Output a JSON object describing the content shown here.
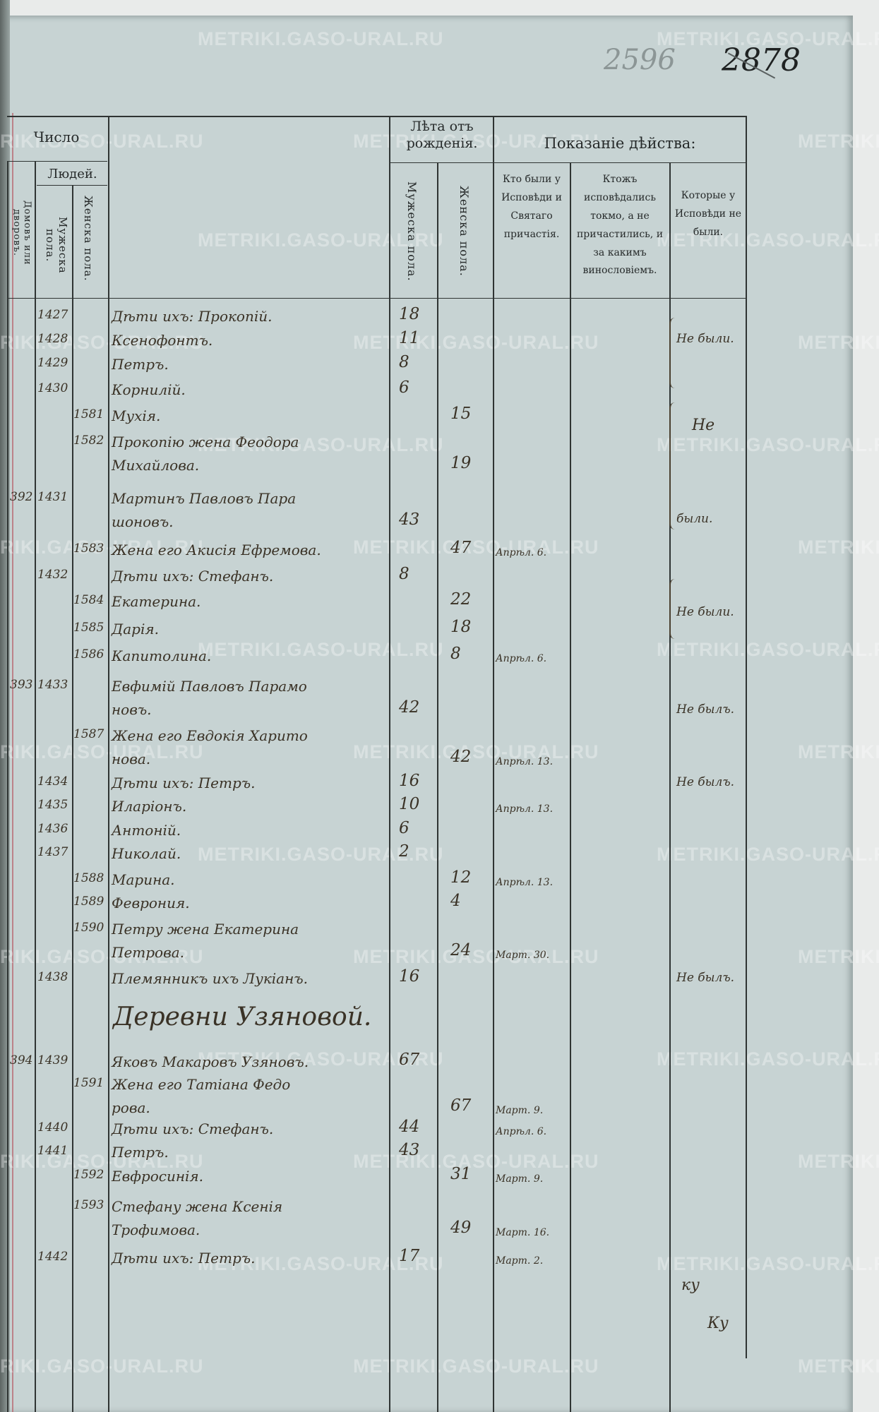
{
  "page_numbers": {
    "pencil": "2596",
    "ink_struck": "2878"
  },
  "watermark": "METRIKI.GASO-URAL.RU",
  "header": {
    "chislo": "Число",
    "lyudey": "Людей.",
    "domov": "Домовъ или дворовъ.",
    "muzh_num": "Мужеска пола.",
    "zhen_num": "Женска пола.",
    "leta": "Лѣта отъ рожденія.",
    "leta_muzh": "Мужеска пола.",
    "leta_zhen": "Женска пола.",
    "pokazanie": "Показаніе дѣйства:",
    "col_confessed": "Кто были у Исповѣди и Святаго причастія.",
    "col_not_communed": "Ктожъ исповѣдались токмо, а не причастились, и за какимъ винословіемъ.",
    "col_absent": "Которые у Исповѣди не были."
  },
  "section_heading": "Деревни Узяновой.",
  "rows": [
    {
      "dvor": "",
      "m": "1427",
      "f": "",
      "name": [
        "Дѣти ихъ: Прокопiй."
      ],
      "mage": "18",
      "fage": "",
      "conf": ""
    },
    {
      "dvor": "",
      "m": "1428",
      "f": "",
      "name": [
        "Ксенофонтъ."
      ],
      "mage": "11",
      "fage": "",
      "conf": ""
    },
    {
      "dvor": "",
      "m": "1429",
      "f": "",
      "name": [
        "Петръ."
      ],
      "mage": "8",
      "fage": "",
      "conf": ""
    },
    {
      "dvor": "",
      "m": "1430",
      "f": "",
      "name": [
        "Корнилiй."
      ],
      "mage": "6",
      "fage": "",
      "conf": ""
    },
    {
      "dvor": "",
      "m": "",
      "f": "1581",
      "name": [
        "Мухiя."
      ],
      "mage": "",
      "fage": "15",
      "conf": ""
    },
    {
      "dvor": "",
      "m": "",
      "f": "1582",
      "name": [
        "Прокопiю жена Феодора",
        "Михайлова."
      ],
      "mage": "",
      "fage": "19",
      "conf": ""
    },
    {
      "dvor": "392",
      "m": "1431",
      "f": "",
      "name": [
        "Мартинъ Павловъ Пара",
        "шоновъ."
      ],
      "mage": "43",
      "fage": "",
      "conf": ""
    },
    {
      "dvor": "",
      "m": "",
      "f": "1583",
      "name": [
        "Жена его Акисiя Ефремова."
      ],
      "mage": "",
      "fage": "47",
      "conf": "Апрѣл. 6."
    },
    {
      "dvor": "",
      "m": "1432",
      "f": "",
      "name": [
        "Дѣти ихъ: Стефанъ."
      ],
      "mage": "8",
      "fage": "",
      "conf": ""
    },
    {
      "dvor": "",
      "m": "",
      "f": "1584",
      "name": [
        "Екатерина."
      ],
      "mage": "",
      "fage": "22",
      "conf": ""
    },
    {
      "dvor": "",
      "m": "",
      "f": "1585",
      "name": [
        "Дарiя."
      ],
      "mage": "",
      "fage": "18",
      "conf": ""
    },
    {
      "dvor": "",
      "m": "",
      "f": "1586",
      "name": [
        "Капитолина."
      ],
      "mage": "",
      "fage": "8",
      "conf": "Апрѣл. 6."
    },
    {
      "dvor": "393",
      "m": "1433",
      "f": "",
      "name": [
        "Евфимiй Павловъ Парамо",
        "новъ."
      ],
      "mage": "42",
      "fage": "",
      "conf": ""
    },
    {
      "dvor": "",
      "m": "",
      "f": "1587",
      "name": [
        "Жена его Евдокiя Харито",
        "нова."
      ],
      "mage": "",
      "fage": "42",
      "conf": "Апрѣл. 13."
    },
    {
      "dvor": "",
      "m": "1434",
      "f": "",
      "name": [
        "Дѣти ихъ: Петръ."
      ],
      "mage": "16",
      "fage": "",
      "conf": ""
    },
    {
      "dvor": "",
      "m": "1435",
      "f": "",
      "name": [
        "Иларiонъ."
      ],
      "mage": "10",
      "fage": "",
      "conf": "Апрѣл. 13."
    },
    {
      "dvor": "",
      "m": "1436",
      "f": "",
      "name": [
        "Антонiй."
      ],
      "mage": "6",
      "fage": "",
      "conf": ""
    },
    {
      "dvor": "",
      "m": "1437",
      "f": "",
      "name": [
        "Николай."
      ],
      "mage": "2",
      "fage": "",
      "conf": ""
    },
    {
      "dvor": "",
      "m": "",
      "f": "1588",
      "name": [
        "Марина."
      ],
      "mage": "",
      "fage": "12",
      "conf": "Апрѣл. 13."
    },
    {
      "dvor": "",
      "m": "",
      "f": "1589",
      "name": [
        "Феврония."
      ],
      "mage": "",
      "fage": "4",
      "conf": ""
    },
    {
      "dvor": "",
      "m": "",
      "f": "1590",
      "name": [
        "Петру жена Екатерина",
        "Петрова."
      ],
      "mage": "",
      "fage": "24",
      "conf": "Март. 30."
    },
    {
      "dvor": "",
      "m": "1438",
      "f": "",
      "name": [
        "Племянникъ ихъ Лукiанъ."
      ],
      "mage": "16",
      "fage": "",
      "conf": ""
    },
    {
      "dvor": "394",
      "m": "1439",
      "f": "",
      "name": [
        "Яковъ Макаровъ Узяновъ."
      ],
      "mage": "67",
      "fage": "",
      "conf": ""
    },
    {
      "dvor": "",
      "m": "",
      "f": "1591",
      "name": [
        "Жена его Татiана Федо",
        "рова."
      ],
      "mage": "",
      "fage": "67",
      "conf": "Март. 9."
    },
    {
      "dvor": "",
      "m": "1440",
      "f": "",
      "name": [
        "Дѣти ихъ: Стефанъ."
      ],
      "mage": "44",
      "fage": "",
      "conf": "Апрѣл. 6."
    },
    {
      "dvor": "",
      "m": "1441",
      "f": "",
      "name": [
        "Петръ."
      ],
      "mage": "43",
      "fage": "",
      "conf": ""
    },
    {
      "dvor": "",
      "m": "",
      "f": "1592",
      "name": [
        "Евфросинiя."
      ],
      "mage": "",
      "fage": "31",
      "conf": "Март. 9."
    },
    {
      "dvor": "",
      "m": "",
      "f": "1593",
      "name": [
        "Стефану жена Ксенiя",
        "Трофимова."
      ],
      "mage": "",
      "fage": "49",
      "conf": "Март. 16."
    },
    {
      "dvor": "",
      "m": "1442",
      "f": "",
      "name": [
        "Дѣти ихъ: Петръ."
      ],
      "mage": "17",
      "fage": "",
      "conf": "Март. 2."
    }
  ],
  "absent_notes": [
    "Не были.",
    "Не",
    "были.",
    "Не были.",
    "Не былъ.",
    "Не былъ.",
    "Не былъ."
  ],
  "bottom_marks": [
    "ку",
    "Ку"
  ]
}
